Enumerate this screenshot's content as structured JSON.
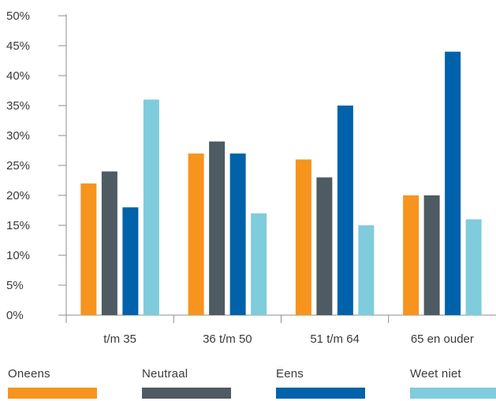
{
  "chart_data": {
    "type": "bar",
    "categories": [
      "t/m 35",
      "36 t/m 50",
      "51 t/m 64",
      "65 en ouder"
    ],
    "series": [
      {
        "name": "Oneens",
        "color": "#F7941D",
        "values": [
          22,
          27,
          26,
          20
        ]
      },
      {
        "name": "Neutraal",
        "color": "#4F5B62",
        "values": [
          24,
          29,
          23,
          20
        ]
      },
      {
        "name": "Eens",
        "color": "#0062AB",
        "values": [
          18,
          27,
          35,
          44
        ]
      },
      {
        "name": "Weet niet",
        "color": "#7FCCDD",
        "values": [
          36,
          17,
          15,
          16
        ]
      }
    ],
    "ylim": [
      0,
      50
    ],
    "y_ticks": [
      "0%",
      "5%",
      "10%",
      "15%",
      "20%",
      "25%",
      "30%",
      "35%",
      "40%",
      "45%",
      "50%"
    ],
    "grid": false,
    "legend_position": "bottom"
  }
}
